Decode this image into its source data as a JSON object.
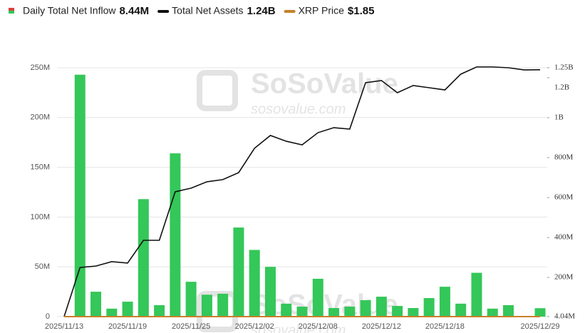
{
  "chart_data": {
    "type": "bar-line",
    "categories": [
      "2025/11/13",
      null,
      null,
      null,
      "2025/11/19",
      null,
      null,
      null,
      "2025/11/25",
      null,
      null,
      null,
      "2025/12/02",
      null,
      null,
      null,
      "2025/12/08",
      null,
      null,
      null,
      "2025/12/12",
      null,
      null,
      null,
      "2025/12/18",
      null,
      null,
      null,
      null,
      null,
      "2025/12/29"
    ],
    "series": [
      {
        "name": "Daily Total Net Inflow",
        "legend_value": "8.44M",
        "type": "bar",
        "color": "#34c759",
        "axis": "y",
        "values": [
          0,
          243000000,
          25000000,
          8000000,
          15000000,
          118000000,
          11500000,
          164000000,
          35000000,
          22000000,
          23000000,
          89500000,
          67000000,
          50000000,
          13000000,
          10000000,
          38000000,
          8600000,
          10000000,
          16500000,
          20000000,
          10700000,
          8600000,
          18600000,
          30000000,
          13000000,
          44000000,
          8000000,
          11500000,
          0,
          8440000
        ]
      },
      {
        "name": "Total Net Assets",
        "legend_value": "1.24B",
        "type": "line",
        "color": "#111111",
        "axis": "y2",
        "values": [
          4040000,
          250000000,
          257000000,
          279000000,
          272000000,
          386000000,
          386000000,
          629000000,
          647000000,
          679000000,
          690000000,
          725000000,
          847000000,
          911000000,
          882000000,
          864000000,
          925000000,
          950000000,
          943000000,
          1175000000,
          1186000000,
          1125000000,
          1161000000,
          1150000000,
          1139000000,
          1218000000,
          1254000000,
          1254000000,
          1250000000,
          1239000000,
          1240000000
        ]
      },
      {
        "name": "XRP Price",
        "legend_value": "$1.85",
        "type": "line",
        "color": "#c8802a",
        "axis": "y",
        "values": [
          2.4,
          2.3,
          2.2,
          2.25,
          2.15,
          2.05,
          1.95,
          2.2,
          2.25,
          2.2,
          2.2,
          2.1,
          2.15,
          2.15,
          2.05,
          2.05,
          2.05,
          2.05,
          2.0,
          2.0,
          2.0,
          1.95,
          1.9,
          1.85,
          1.85,
          1.9,
          1.95,
          1.9,
          1.85,
          1.9,
          1.85
        ]
      }
    ],
    "ylim": [
      0,
      250000000
    ],
    "yticks": [
      {
        "value": 0,
        "label": "0"
      },
      {
        "value": 50000000,
        "label": "50M"
      },
      {
        "value": 100000000,
        "label": "100M"
      },
      {
        "value": 150000000,
        "label": "150M"
      },
      {
        "value": 200000000,
        "label": "200M"
      },
      {
        "value": 250000000,
        "label": "250M"
      }
    ],
    "y2lim": [
      4040000,
      1250000000
    ],
    "y2ticks": [
      {
        "value": 4040000,
        "label": "4.04M"
      },
      {
        "value": 200000000,
        "label": "200M"
      },
      {
        "value": 400000000,
        "label": "400M"
      },
      {
        "value": 600000000,
        "label": "600M"
      },
      {
        "value": 800000000,
        "label": "800M"
      },
      {
        "value": 1000000000,
        "label": "1B"
      },
      {
        "value": 1200000000,
        "label": "1.2B"
      },
      {
        "value": 1250000000,
        "label": "1.25B"
      }
    ],
    "grid": true,
    "watermark": [
      "SoSoValue",
      "sosovalue.com"
    ]
  }
}
